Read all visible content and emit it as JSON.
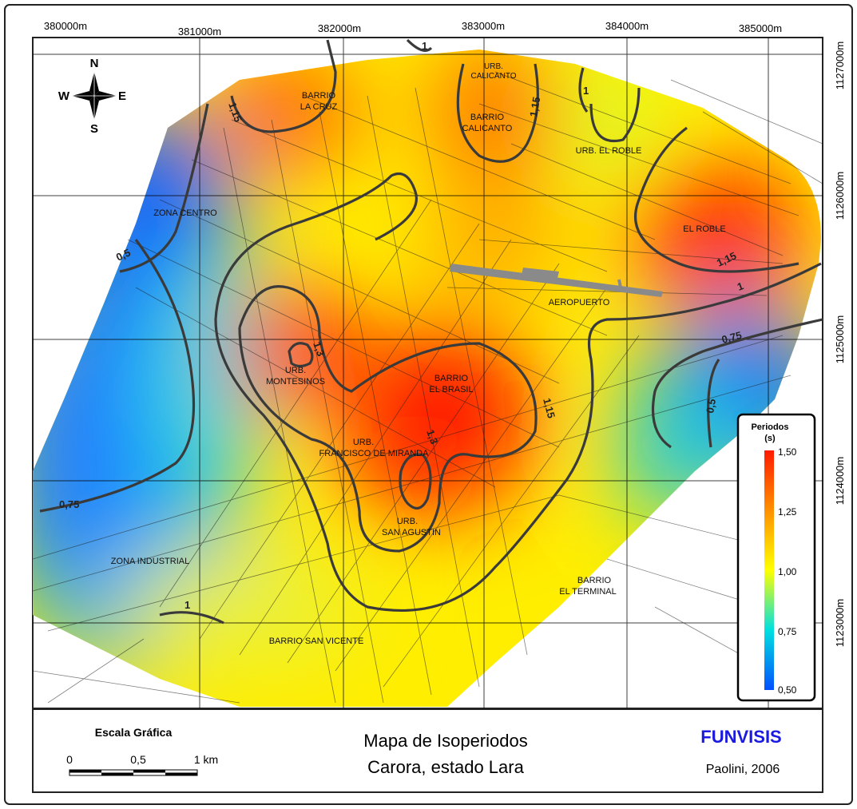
{
  "axes": {
    "x_ticks": [
      "380000m",
      "381000m",
      "382000m",
      "383000m",
      "384000m",
      "385000m"
    ],
    "y_ticks": [
      "1127000m",
      "1126000m",
      "1125000m",
      "1124000m",
      "1123000m"
    ]
  },
  "compass": {
    "n": "N",
    "s": "S",
    "e": "E",
    "w": "W"
  },
  "places": [
    {
      "id": "barrio-la-cruz",
      "lines": [
        "BARRIO",
        "LA CRUZ"
      ]
    },
    {
      "id": "urb-calicanto",
      "lines": [
        "URB.",
        "CALICANTO"
      ]
    },
    {
      "id": "barrio-calicanto",
      "lines": [
        "BARRIO",
        "CALICANTO"
      ]
    },
    {
      "id": "urb-el-roble",
      "lines": [
        "URB. EL ROBLE"
      ]
    },
    {
      "id": "zona-centro",
      "lines": [
        "ZONA CENTRO"
      ]
    },
    {
      "id": "el-roble",
      "lines": [
        "EL ROBLE"
      ]
    },
    {
      "id": "aeropuerto",
      "lines": [
        "AEROPUERTO"
      ]
    },
    {
      "id": "urb-montesinos",
      "lines": [
        "URB.",
        "MONTESINOS"
      ]
    },
    {
      "id": "barrio-el-brasil",
      "lines": [
        "BARRIO",
        "EL BRASIL"
      ]
    },
    {
      "id": "urb-francisco-de-miranda",
      "lines": [
        "URB.",
        "FRANCISCO DE MIRANDA"
      ]
    },
    {
      "id": "urb-san-agustin",
      "lines": [
        "URB.",
        "SAN AGUSTIN"
      ]
    },
    {
      "id": "zona-industrial",
      "lines": [
        "ZONA INDUSTRIAL"
      ]
    },
    {
      "id": "barrio-el-terminal",
      "lines": [
        "BARRIO",
        "EL TERMINAL"
      ]
    },
    {
      "id": "barrio-san-vicente",
      "lines": [
        "BARRIO SAN VICENTE"
      ]
    }
  ],
  "contour_labels": [
    {
      "id": "c1",
      "text": "1,15"
    },
    {
      "id": "c2",
      "text": "1"
    },
    {
      "id": "c3",
      "text": "1,15"
    },
    {
      "id": "c4",
      "text": "1"
    },
    {
      "id": "c5",
      "text": "0,5"
    },
    {
      "id": "c6",
      "text": "1,15"
    },
    {
      "id": "c7",
      "text": "1"
    },
    {
      "id": "c8",
      "text": "0,75"
    },
    {
      "id": "c9",
      "text": "1,3"
    },
    {
      "id": "c10",
      "text": "1,15"
    },
    {
      "id": "c11",
      "text": "0,5"
    },
    {
      "id": "c12",
      "text": "1,3"
    },
    {
      "id": "c13",
      "text": "0,75"
    },
    {
      "id": "c14",
      "text": "1"
    }
  ],
  "legend": {
    "title_line1": "Periodos",
    "title_line2": "(s)",
    "ticks": [
      "1,50",
      "1,25",
      "1,00",
      "0,75",
      "0,50"
    ],
    "colors": [
      "#ff1a00",
      "#ff9000",
      "#ffff00",
      "#00e0e0",
      "#0050ff"
    ]
  },
  "footer": {
    "scale_title": "Escala Gráfica",
    "scale_labels": [
      "0",
      "0,5",
      "1 km"
    ],
    "title_line1": "Mapa de Isoperiodos",
    "title_line2": "Carora, estado Lara",
    "org": "FUNVISIS",
    "credit": "Paolini, 2006"
  }
}
